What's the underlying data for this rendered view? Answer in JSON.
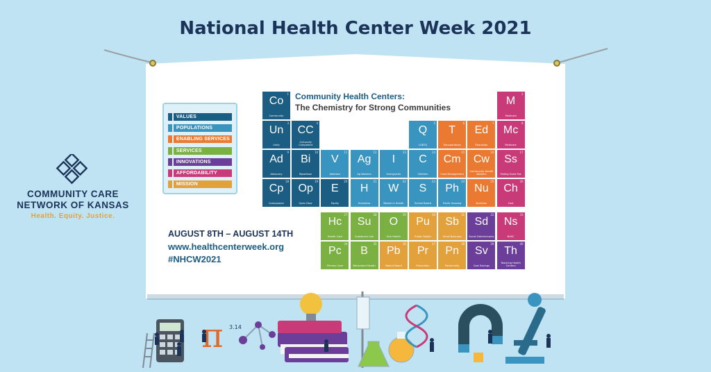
{
  "title": "National Health Center Week 2021",
  "logo": {
    "line1": "COMMUNITY CARE",
    "line2": "NETWORK OF KANSAS",
    "tagline": "Health.   Equity.   Justice."
  },
  "table": {
    "title": "Community Health Centers:",
    "subtitle": "The Chemistry for Strong Communities"
  },
  "legend": [
    {
      "label": "VALUES",
      "color": "#1b5d83"
    },
    {
      "label": "POPULATIONS",
      "color": "#3a94c0"
    },
    {
      "label": "ENABLING SERVICES",
      "color": "#ea7a32"
    },
    {
      "label": "SERVICES",
      "color": "#7bb043"
    },
    {
      "label": "INNOVATIONS",
      "color": "#6b3e9a"
    },
    {
      "label": "AFFORDABILITY",
      "color": "#c93a78"
    },
    {
      "label": "MISSION",
      "color": "#e3a13b"
    }
  ],
  "tiles": [
    {
      "sym": "Co",
      "name": "Community",
      "num": "1",
      "color": "#1b5d83"
    },
    {
      "sym": "M",
      "name": "Medicaid",
      "num": "2",
      "color": "#c93a78"
    },
    {
      "sym": "Un",
      "name": "Unity",
      "num": "3",
      "color": "#1b5d83"
    },
    {
      "sym": "CC",
      "name": "Culturally Competent",
      "num": "4",
      "color": "#1b5d83"
    },
    {
      "sym": "Q",
      "name": "LGBTQ",
      "num": "5",
      "color": "#3a94c0"
    },
    {
      "sym": "T",
      "name": "Transportation",
      "num": "6",
      "color": "#ea7a32"
    },
    {
      "sym": "Ed",
      "name": "Education",
      "num": "7",
      "color": "#ea7a32"
    },
    {
      "sym": "Mc",
      "name": "Medicare",
      "num": "8",
      "color": "#c93a78"
    },
    {
      "sym": "Ad",
      "name": "Advocacy",
      "num": "9",
      "color": "#1b5d83"
    },
    {
      "sym": "Bi",
      "name": "Bipartisan",
      "num": "10",
      "color": "#1b5d83"
    },
    {
      "sym": "V",
      "name": "Veterans",
      "num": "11",
      "color": "#3a94c0"
    },
    {
      "sym": "Ag",
      "name": "Ag Workers",
      "num": "12",
      "color": "#3a94c0"
    },
    {
      "sym": "I",
      "name": "Immigrants",
      "num": "13",
      "color": "#3a94c0"
    },
    {
      "sym": "C",
      "name": "Children",
      "num": "14",
      "color": "#3a94c0"
    },
    {
      "sym": "Cm",
      "name": "Case Management",
      "num": "15",
      "color": "#ea7a32"
    },
    {
      "sym": "Cw",
      "name": "Community Health Workers",
      "num": "16",
      "color": "#ea7a32"
    },
    {
      "sym": "Ss",
      "name": "Sliding Scale Fee",
      "num": "17",
      "color": "#c93a78"
    },
    {
      "sym": "Cp",
      "name": "Compassion",
      "num": "18",
      "color": "#1b5d83"
    },
    {
      "sym": "Op",
      "name": "Open Door",
      "num": "19",
      "color": "#1b5d83"
    },
    {
      "sym": "E",
      "name": "Equity",
      "num": "20",
      "color": "#1b5d83"
    },
    {
      "sym": "H",
      "name": "Homeless",
      "num": "21",
      "color": "#3a94c0"
    },
    {
      "sym": "W",
      "name": "Women's Health",
      "num": "22",
      "color": "#3a94c0"
    },
    {
      "sym": "S",
      "name": "School Based",
      "num": "23",
      "color": "#3a94c0"
    },
    {
      "sym": "Ph",
      "name": "Public Housing",
      "num": "24",
      "color": "#3a94c0"
    },
    {
      "sym": "Nu",
      "name": "Nutrition",
      "num": "25",
      "color": "#ea7a32"
    },
    {
      "sym": "Ch",
      "name": "Cost",
      "num": "26",
      "color": "#c93a78"
    },
    {
      "sym": "Hc",
      "name": "Health Care",
      "num": "27",
      "color": "#7bb043"
    },
    {
      "sym": "Su",
      "name": "Substance Use",
      "num": "28",
      "color": "#7bb043"
    },
    {
      "sym": "O",
      "name": "Oral Health",
      "num": "29",
      "color": "#7bb043"
    },
    {
      "sym": "Pu",
      "name": "Public Health",
      "num": "30",
      "color": "#e3a13b"
    },
    {
      "sym": "Sb",
      "name": "Small Business",
      "num": "31",
      "color": "#e3a13b"
    },
    {
      "sym": "Sd",
      "name": "Social Determinants",
      "num": "32",
      "color": "#6b3e9a"
    },
    {
      "sym": "Ns",
      "name": "NHSC",
      "num": "33",
      "color": "#c93a78"
    },
    {
      "sym": "Pc",
      "name": "Primary Care",
      "num": "34",
      "color": "#7bb043"
    },
    {
      "sym": "B",
      "name": "Behavioral Health",
      "num": "35",
      "color": "#7bb043"
    },
    {
      "sym": "Pb",
      "name": "Patient Board",
      "num": "36",
      "color": "#e3a13b"
    },
    {
      "sym": "Pr",
      "name": "Prevention",
      "num": "37",
      "color": "#e3a13b"
    },
    {
      "sym": "Pn",
      "name": "Partnership",
      "num": "38",
      "color": "#e3a13b"
    },
    {
      "sym": "Sv",
      "name": "Cost Savings",
      "num": "39",
      "color": "#6b3e9a"
    },
    {
      "sym": "Th",
      "name": "Teaching Health Centers",
      "num": "40",
      "color": "#6b3e9a"
    }
  ],
  "event": {
    "dates": "AUGUST 8TH – AUGUST 14TH",
    "url": "www.healthcenterweek.org",
    "hashtag": "#NHCW2021"
  },
  "illustration": {
    "pi_symbol": "π",
    "pi_value": "3.14"
  }
}
